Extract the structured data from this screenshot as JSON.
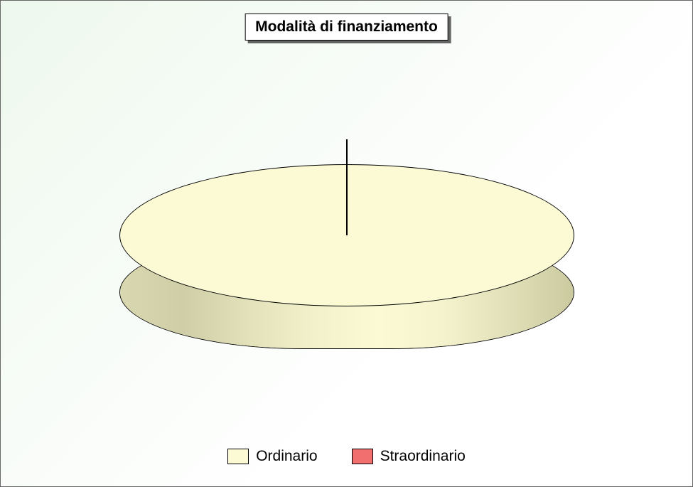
{
  "chart": {
    "type": "pie-3d",
    "title": "Modalità di finanziamento",
    "title_fontsize": 21,
    "title_fontweight": "bold",
    "title_border_color": "#000000",
    "title_bg_color": "#ffffff",
    "title_shadow_color": "rgba(0,0,0,0.6)",
    "background_gradient_from": "#eef8ee",
    "background_gradient_to": "#ffffff",
    "border_color": "#666666",
    "series": [
      {
        "label": "Ordinario",
        "value": 100,
        "color": "#fbfad4"
      },
      {
        "label": "Straordinario",
        "value": 0,
        "color": "#f26f6f"
      }
    ],
    "side_gradient": [
      "#d9d8b0",
      "#cfcea6",
      "#e3e2ba",
      "#f2f1cb",
      "#fbfad4",
      "#f4f3cd",
      "#e0dfb7",
      "#cbca9f"
    ],
    "outline_color": "#000000",
    "needle_color": "#000000",
    "legend_fontsize": 21
  }
}
